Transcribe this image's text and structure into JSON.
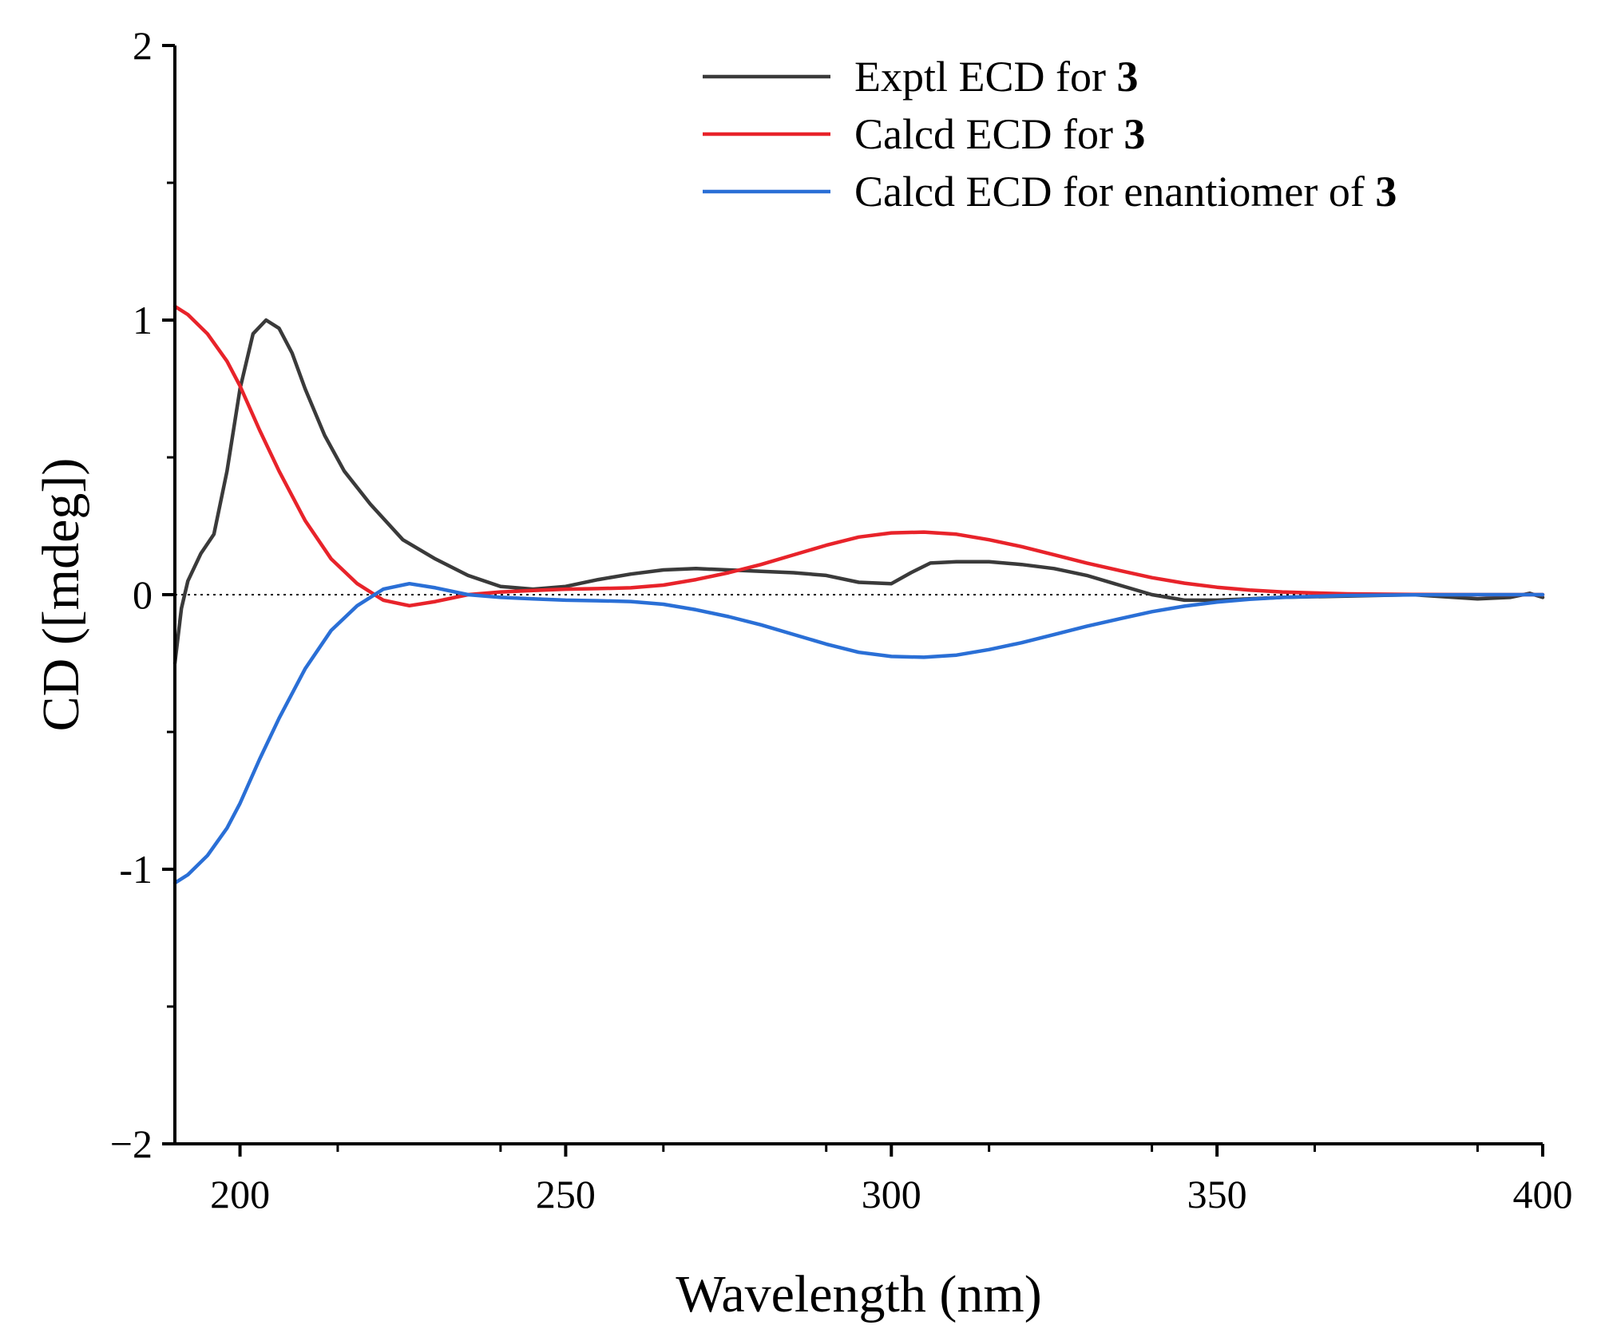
{
  "chart_data": {
    "type": "line",
    "title": "",
    "xlabel": "Wavelength (nm)",
    "ylabel": "CD ([mdeg])",
    "xlim": [
      190,
      400
    ],
    "ylim": [
      -2,
      2
    ],
    "x_ticks": [
      200,
      250,
      300,
      350,
      400
    ],
    "x_tick_labels": [
      "200",
      "250",
      "300",
      "350",
      "400"
    ],
    "y_ticks": [
      -2,
      -1,
      0,
      1,
      2
    ],
    "y_tick_labels": [
      "−2",
      "-1",
      "0",
      "1",
      "2"
    ],
    "zero_line": true,
    "legend_position": "top-right",
    "series": [
      {
        "name": "Exptl ECD for 3",
        "legend_prefix": "Exptl ECD for ",
        "legend_compound": "3",
        "color": "#3a3a3a",
        "x": [
          190,
          191,
          192,
          194,
          196,
          198,
          200,
          202,
          204,
          206,
          208,
          210,
          213,
          216,
          220,
          225,
          230,
          235,
          240,
          245,
          250,
          255,
          260,
          265,
          270,
          275,
          280,
          285,
          290,
          295,
          300,
          303,
          306,
          310,
          315,
          320,
          325,
          330,
          335,
          340,
          345,
          350,
          355,
          360,
          370,
          380,
          390,
          395,
          398,
          400
        ],
        "y": [
          -0.25,
          -0.05,
          0.05,
          0.15,
          0.22,
          0.45,
          0.75,
          0.95,
          1.0,
          0.97,
          0.88,
          0.75,
          0.58,
          0.45,
          0.33,
          0.2,
          0.13,
          0.07,
          0.03,
          0.02,
          0.03,
          0.055,
          0.075,
          0.09,
          0.095,
          0.09,
          0.085,
          0.08,
          0.07,
          0.045,
          0.04,
          0.08,
          0.115,
          0.12,
          0.12,
          0.11,
          0.095,
          0.07,
          0.035,
          0.0,
          -0.02,
          -0.02,
          -0.015,
          -0.01,
          -0.005,
          0.0,
          -0.015,
          -0.01,
          0.005,
          -0.01
        ]
      },
      {
        "name": "Calcd ECD for 3",
        "legend_prefix": "Calcd ECD for ",
        "legend_compound": "3",
        "color": "#e8232a",
        "x": [
          190,
          192,
          195,
          198,
          200,
          203,
          206,
          210,
          214,
          218,
          222,
          226,
          230,
          235,
          240,
          245,
          250,
          255,
          260,
          265,
          270,
          275,
          280,
          285,
          290,
          295,
          300,
          305,
          310,
          315,
          320,
          325,
          330,
          335,
          340,
          345,
          350,
          355,
          360,
          365,
          370,
          380,
          390,
          400
        ],
        "y": [
          1.05,
          1.02,
          0.95,
          0.85,
          0.76,
          0.6,
          0.45,
          0.27,
          0.13,
          0.04,
          -0.02,
          -0.04,
          -0.025,
          0.0,
          0.01,
          0.015,
          0.02,
          0.022,
          0.025,
          0.035,
          0.055,
          0.08,
          0.11,
          0.145,
          0.18,
          0.21,
          0.225,
          0.228,
          0.22,
          0.2,
          0.175,
          0.145,
          0.115,
          0.088,
          0.062,
          0.042,
          0.027,
          0.017,
          0.01,
          0.006,
          0.003,
          0.001,
          0.0,
          0.0
        ]
      },
      {
        "name": "Calcd ECD for enantiomer of 3",
        "legend_prefix": "Calcd ECD for enantiomer of ",
        "legend_compound": "3",
        "color": "#2a6fd6",
        "x": [
          190,
          192,
          195,
          198,
          200,
          203,
          206,
          210,
          214,
          218,
          222,
          226,
          230,
          235,
          240,
          245,
          250,
          255,
          260,
          265,
          270,
          275,
          280,
          285,
          290,
          295,
          300,
          305,
          310,
          315,
          320,
          325,
          330,
          335,
          340,
          345,
          350,
          355,
          360,
          365,
          370,
          380,
          390,
          400
        ],
        "y": [
          -1.05,
          -1.02,
          -0.95,
          -0.85,
          -0.76,
          -0.6,
          -0.45,
          -0.27,
          -0.13,
          -0.04,
          0.02,
          0.04,
          0.025,
          0.0,
          -0.01,
          -0.015,
          -0.02,
          -0.022,
          -0.025,
          -0.035,
          -0.055,
          -0.08,
          -0.11,
          -0.145,
          -0.18,
          -0.21,
          -0.225,
          -0.228,
          -0.22,
          -0.2,
          -0.175,
          -0.145,
          -0.115,
          -0.088,
          -0.062,
          -0.042,
          -0.027,
          -0.017,
          -0.01,
          -0.006,
          -0.003,
          -0.001,
          0.0,
          0.0
        ]
      }
    ]
  }
}
